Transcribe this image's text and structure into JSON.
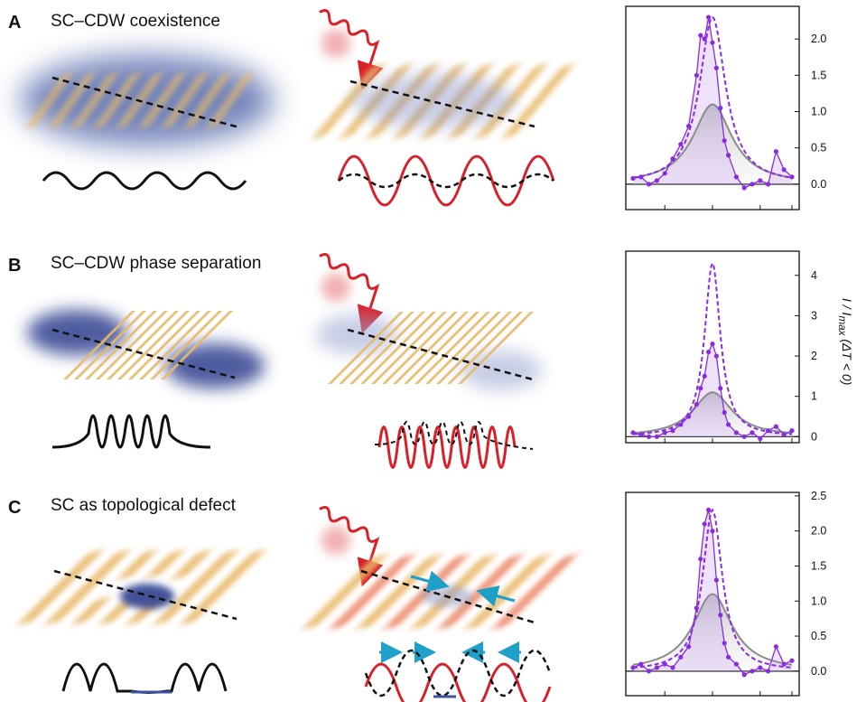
{
  "panels": [
    {
      "letter": "A",
      "title": "SC–CDW coexistence"
    },
    {
      "letter": "B",
      "title": "SC–CDW phase separation"
    },
    {
      "letter": "C",
      "title": "SC as topological defect"
    }
  ],
  "y_axis_label": "I / I",
  "y_axis_label_sub": "max",
  "y_axis_label_cond": " (ΔT < 0)",
  "colors": {
    "cdw": "#e8b96a",
    "sc": "#2e3f8f",
    "pulse": "#d92028",
    "purple": "#8a2be2",
    "gray": "#8c8c8c",
    "arrow": "#1ea0c8"
  },
  "chart_data": [
    {
      "type": "line",
      "panel": "A",
      "yticks": [
        "2.0",
        "1.5",
        "1.0",
        "0.5",
        "0.0"
      ],
      "ylim": [
        -0.35,
        2.45
      ],
      "xlim": [
        -1,
        1
      ],
      "series": [
        {
          "style": "purple-dotted",
          "x": [
            -1,
            -0.9,
            -0.8,
            -0.7,
            -0.6,
            -0.5,
            -0.4,
            -0.3,
            -0.2,
            -0.15,
            -0.1,
            -0.05,
            0,
            0.05,
            0.1,
            0.15,
            0.2,
            0.3,
            0.4,
            0.5,
            0.6,
            0.7,
            0.8,
            0.9,
            1
          ],
          "y": [
            0.08,
            0.1,
            0.0,
            0.05,
            0.15,
            0.35,
            0.55,
            0.8,
            1.5,
            2.05,
            2.0,
            2.3,
            1.95,
            1.6,
            1.05,
            0.6,
            0.4,
            0.1,
            -0.05,
            0.0,
            0.05,
            0.0,
            0.45,
            0.2,
            0.1
          ]
        },
        {
          "style": "purple-dashed-fit",
          "peak": 2.3,
          "width": 0.2
        },
        {
          "style": "gray-fit",
          "peak": 1.1,
          "width": 0.3
        }
      ]
    },
    {
      "type": "line",
      "panel": "B",
      "yticks": [
        "4",
        "3",
        "2",
        "1",
        "0"
      ],
      "ylim": [
        -0.15,
        4.6
      ],
      "xlim": [
        -1,
        1
      ],
      "series": [
        {
          "style": "purple-dotted",
          "x": [
            -1,
            -0.9,
            -0.8,
            -0.7,
            -0.6,
            -0.5,
            -0.4,
            -0.3,
            -0.2,
            -0.15,
            -0.1,
            -0.05,
            0,
            0.05,
            0.1,
            0.15,
            0.2,
            0.3,
            0.4,
            0.5,
            0.6,
            0.7,
            0.8,
            0.9,
            1
          ],
          "y": [
            0.1,
            0.05,
            0.0,
            0.0,
            0.1,
            0.15,
            0.3,
            0.5,
            0.8,
            1.2,
            1.5,
            2.1,
            2.3,
            2.0,
            1.2,
            0.6,
            0.3,
            0.1,
            0.0,
            0.1,
            -0.05,
            0.15,
            0.25,
            0.05,
            0.15
          ]
        },
        {
          "style": "purple-dashed-fit",
          "peak": 4.3,
          "width": 0.12
        },
        {
          "style": "gray-fit",
          "peak": 1.1,
          "width": 0.3
        }
      ]
    },
    {
      "type": "line",
      "panel": "C",
      "yticks": [
        "2.5",
        "2.0",
        "1.5",
        "1.0",
        "0.5",
        "0.0"
      ],
      "ylim": [
        -0.35,
        2.55
      ],
      "xlim": [
        -1,
        1
      ],
      "series": [
        {
          "style": "purple-dotted",
          "x": [
            -1,
            -0.9,
            -0.8,
            -0.7,
            -0.6,
            -0.5,
            -0.4,
            -0.3,
            -0.2,
            -0.15,
            -0.1,
            -0.05,
            0,
            0.05,
            0.1,
            0.15,
            0.2,
            0.3,
            0.4,
            0.5,
            0.6,
            0.7,
            0.8,
            0.9,
            1
          ],
          "y": [
            0.05,
            0.1,
            0.0,
            0.05,
            0.1,
            0.05,
            0.2,
            0.35,
            0.9,
            1.6,
            2.1,
            2.3,
            2.0,
            1.3,
            0.8,
            0.4,
            0.2,
            0.1,
            -0.05,
            0.0,
            0.05,
            0.0,
            0.35,
            0.1,
            0.15
          ]
        },
        {
          "style": "purple-dashed-fit",
          "peak": 2.3,
          "width": 0.15
        },
        {
          "style": "gray-fit",
          "peak": 1.1,
          "width": 0.3
        }
      ]
    }
  ]
}
